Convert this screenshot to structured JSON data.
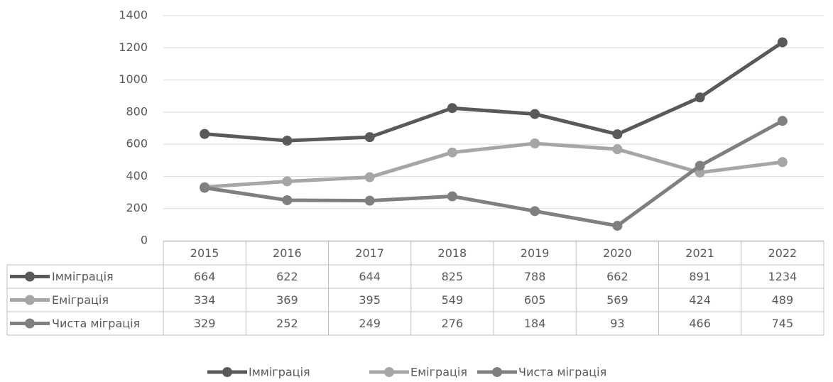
{
  "chart_data": {
    "type": "line",
    "categories": [
      "2015",
      "2016",
      "2017",
      "2018",
      "2019",
      "2020",
      "2021",
      "2022"
    ],
    "series": [
      {
        "name": "Імміграція",
        "color": "#595959",
        "values": [
          664,
          622,
          644,
          825,
          788,
          662,
          891,
          1234
        ]
      },
      {
        "name": "Еміграція",
        "color": "#a6a6a6",
        "values": [
          334,
          369,
          395,
          549,
          605,
          569,
          424,
          489
        ]
      },
      {
        "name": "Чиста міграція",
        "color": "#7f7f7f",
        "values": [
          329,
          252,
          249,
          276,
          184,
          93,
          466,
          745
        ]
      }
    ],
    "ylim": [
      0,
      1400
    ],
    "yticks": [
      0,
      200,
      400,
      600,
      800,
      1000,
      1200,
      1400
    ],
    "grid": true
  }
}
